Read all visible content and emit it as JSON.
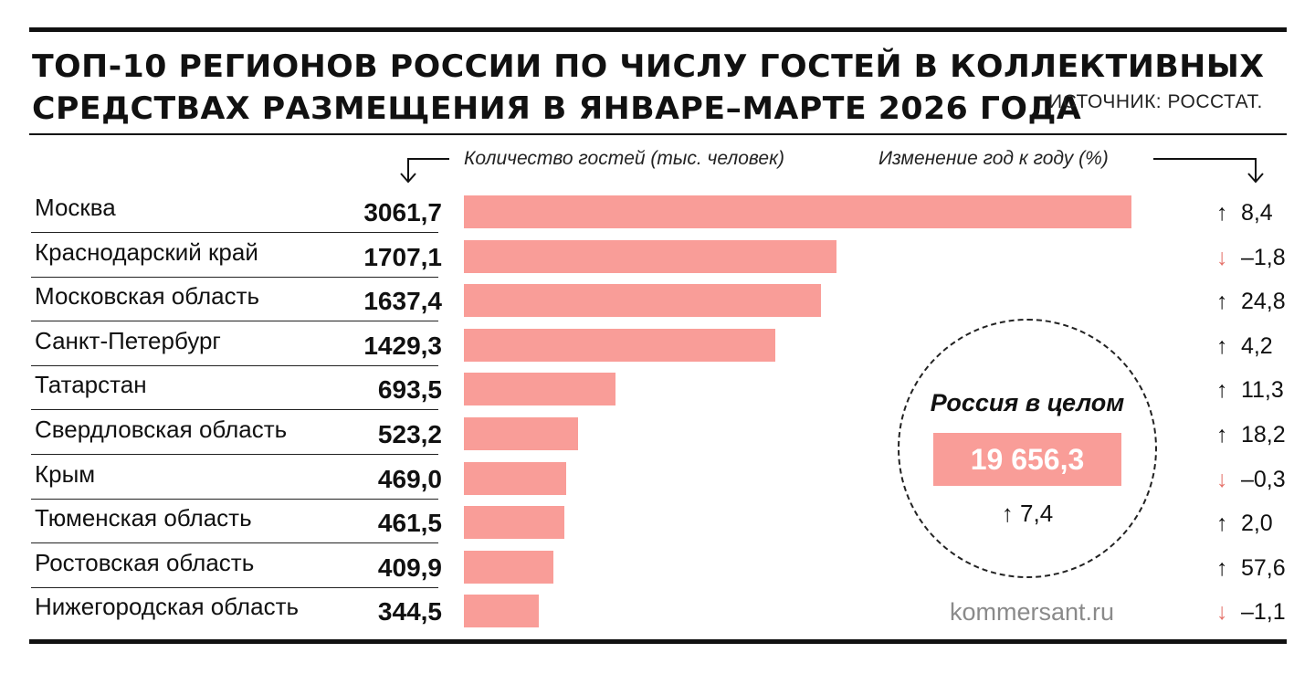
{
  "title_lines": [
    "ТОП-10 РЕГИОНОВ РОССИИ ПО ЧИСЛУ ГОСТЕЙ В КОЛЛЕКТИВНЫХ",
    "СРЕДСТВАХ РАЗМЕЩЕНИЯ В ЯНВАРЕ–МАРТЕ 2026 ГОДА"
  ],
  "source": "ИСТОЧНИК: РОССТАТ.",
  "left_header": "Количество гостей (тыс. человек)",
  "right_header": "Изменение год к году (%)",
  "credit": "kommersant.ru",
  "colors": {
    "bar": "#f99d98",
    "down_arrow": "#e5736b",
    "text": "#111111"
  },
  "chart_data": {
    "type": "bar",
    "orientation": "horizontal",
    "categories": [
      "Москва",
      "Краснодарский край",
      "Московская область",
      "Санкт-Петербург",
      "Татарстан",
      "Свердловская область",
      "Крым",
      "Тюменская область",
      "Ростовская область",
      "Нижегородская область"
    ],
    "series": [
      {
        "values": [
          3061.7,
          1707.1,
          1637.4,
          1429.3,
          693.5,
          523.2,
          469.0,
          461.5,
          409.9,
          344.5
        ]
      }
    ],
    "value_labels": [
      "3061,7",
      "1707,1",
      "1637,4",
      "1429,3",
      "693,5",
      "523,2",
      "469,0",
      "461,5",
      "409,9",
      "344,5"
    ],
    "yoy_change": [
      8.4,
      -1.8,
      24.8,
      4.2,
      11.3,
      18.2,
      -0.3,
      2.0,
      57.6,
      -1.1
    ],
    "yoy_labels": [
      "8,4",
      "–1,8",
      "24,8",
      "4,2",
      "11,3",
      "18,2",
      "–0,3",
      "2,0",
      "57,6",
      "–1,1"
    ],
    "xlim": [
      0,
      3061.7
    ],
    "grid": false,
    "legend": "none"
  },
  "total": {
    "label": "Россия в целом",
    "value": 19656.3,
    "value_label": "19 656,3",
    "change": 7.4,
    "change_label": "7,4"
  }
}
